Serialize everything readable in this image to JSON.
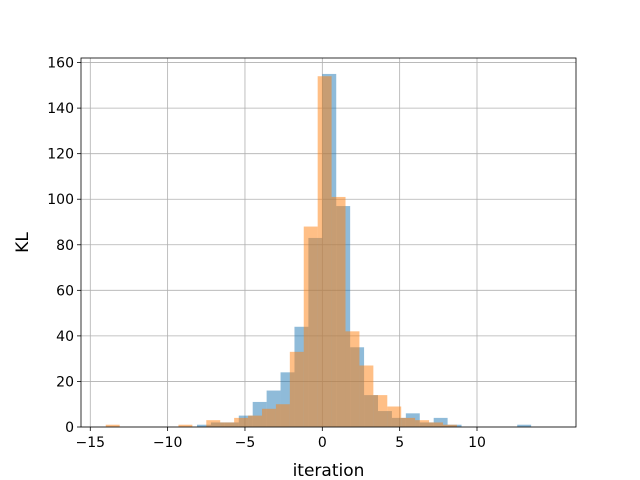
{
  "chart_data": {
    "type": "bar",
    "xlabel": "iteration",
    "ylabel": "KL",
    "xlim": [
      -15.6,
      16.4
    ],
    "ylim": [
      0,
      162
    ],
    "grid": true,
    "x_ticks": [
      -15,
      -10,
      -5,
      0,
      5,
      10
    ],
    "y_ticks": [
      0,
      20,
      40,
      60,
      80,
      100,
      120,
      140,
      160
    ],
    "colors": {
      "series1": "#1f77b4",
      "series2": "#ff7f0e",
      "overlap": "#b68a68"
    },
    "bin_width": 0.9,
    "series": [
      {
        "color": "#1f77b4",
        "bins": [
          {
            "x": -8.1,
            "y": 1
          },
          {
            "x": -7.2,
            "y": 2
          },
          {
            "x": -6.3,
            "y": 2
          },
          {
            "x": -5.4,
            "y": 5
          },
          {
            "x": -4.5,
            "y": 11
          },
          {
            "x": -3.6,
            "y": 16
          },
          {
            "x": -2.7,
            "y": 24
          },
          {
            "x": -1.8,
            "y": 44
          },
          {
            "x": -0.9,
            "y": 83
          },
          {
            "x": 0.0,
            "y": 155
          },
          {
            "x": 0.9,
            "y": 97
          },
          {
            "x": 1.8,
            "y": 35
          },
          {
            "x": 2.7,
            "y": 14
          },
          {
            "x": 3.6,
            "y": 7
          },
          {
            "x": 4.5,
            "y": 4
          },
          {
            "x": 5.4,
            "y": 6
          },
          {
            "x": 6.3,
            "y": 2
          },
          {
            "x": 7.2,
            "y": 4
          },
          {
            "x": 8.1,
            "y": 1
          },
          {
            "x": 12.6,
            "y": 1
          }
        ]
      },
      {
        "color": "#ff7f0e",
        "bins": [
          {
            "x": -14.0,
            "y": 1
          },
          {
            "x": -9.3,
            "y": 1
          },
          {
            "x": -7.5,
            "y": 3
          },
          {
            "x": -6.6,
            "y": 2
          },
          {
            "x": -5.7,
            "y": 4
          },
          {
            "x": -4.8,
            "y": 5
          },
          {
            "x": -3.9,
            "y": 8
          },
          {
            "x": -3.0,
            "y": 10
          },
          {
            "x": -2.1,
            "y": 33
          },
          {
            "x": -1.2,
            "y": 88
          },
          {
            "x": -0.3,
            "y": 154
          },
          {
            "x": 0.6,
            "y": 101
          },
          {
            "x": 1.5,
            "y": 42
          },
          {
            "x": 2.4,
            "y": 27
          },
          {
            "x": 3.3,
            "y": 14
          },
          {
            "x": 4.2,
            "y": 9
          },
          {
            "x": 5.1,
            "y": 4
          },
          {
            "x": 6.0,
            "y": 3
          },
          {
            "x": 6.9,
            "y": 2
          },
          {
            "x": 7.8,
            "y": 1
          }
        ]
      }
    ]
  }
}
